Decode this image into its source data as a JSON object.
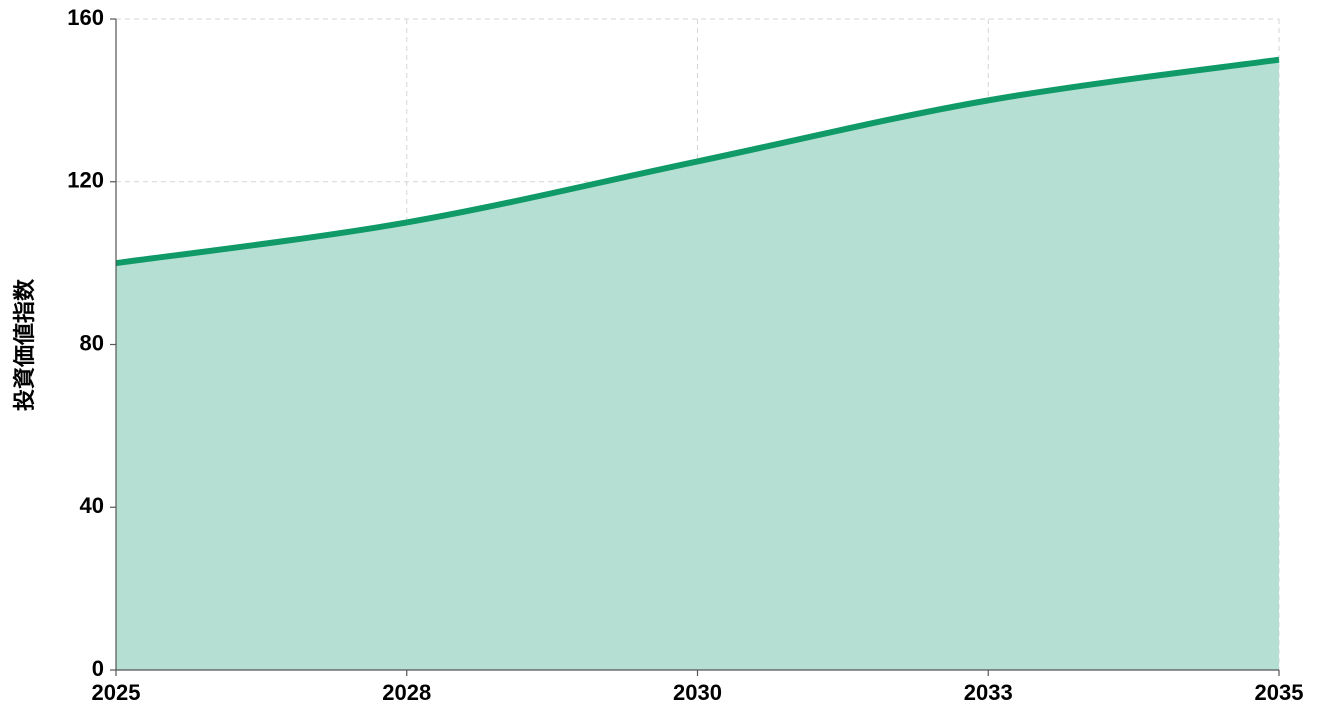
{
  "chart_data": {
    "type": "area",
    "y_label": "投資価値指数",
    "categories": [
      "2025",
      "2028",
      "2030",
      "2033",
      "2035"
    ],
    "values": [
      100,
      110,
      125,
      140,
      150
    ],
    "color": "#0f9a68",
    "fill_color": "#b5dfd3",
    "ylim": [
      0,
      160
    ],
    "yticks": [
      0,
      40,
      80,
      120,
      160
    ],
    "grid": true
  }
}
